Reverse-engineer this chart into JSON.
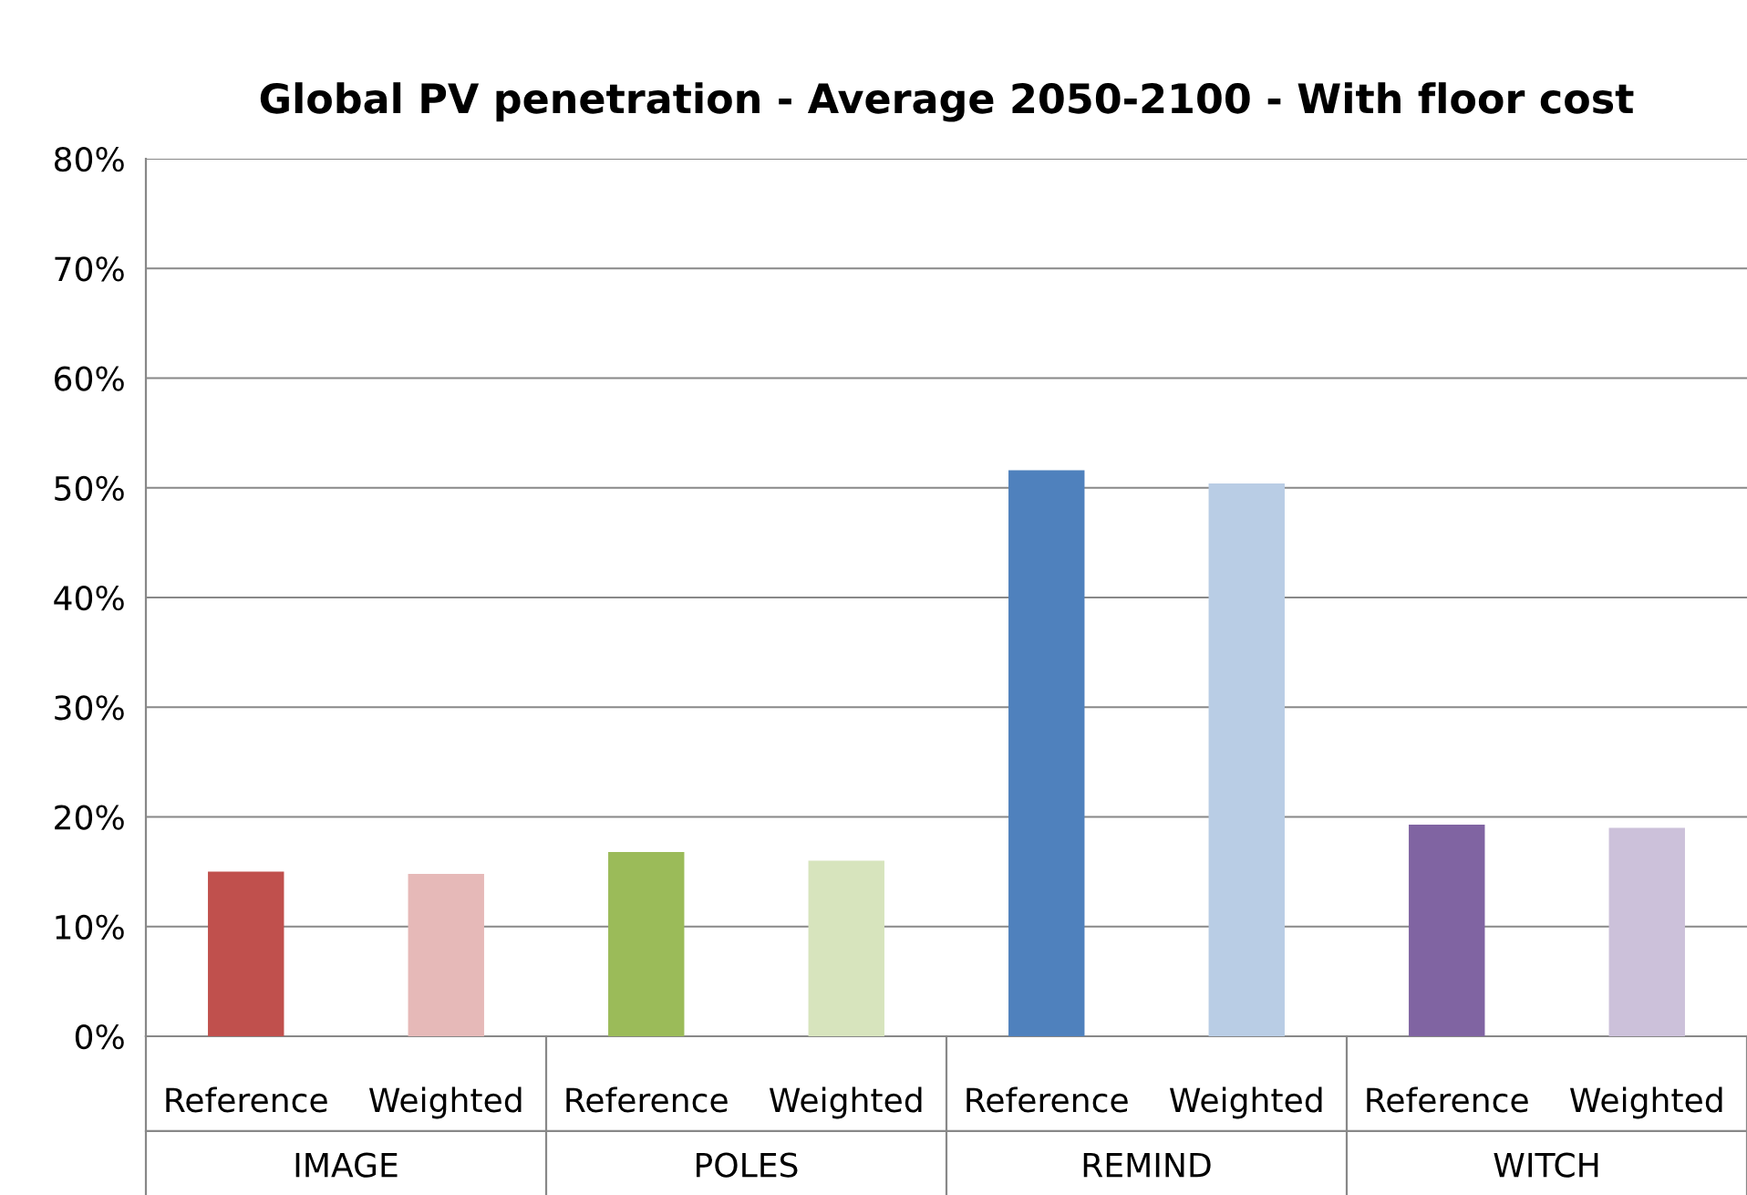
{
  "chart_data": {
    "type": "bar",
    "title": "Global PV penetration - Average 2050-2100 - With floor cost",
    "categories": [
      "Reference",
      "Weighted",
      "Reference",
      "Weighted",
      "Reference",
      "Weighted",
      "Reference",
      "Weighted"
    ],
    "values": [
      15.0,
      14.8,
      16.8,
      16.0,
      51.6,
      50.4,
      19.3,
      19.0
    ],
    "colors": [
      "#c0504d",
      "#e6b9b8",
      "#9bbb59",
      "#d7e4bd",
      "#4f81bd",
      "#b9cde5",
      "#8064a2",
      "#ccc1da"
    ],
    "annotations": [
      "IMAGE",
      "POLES",
      "REMIND",
      "WITCH"
    ],
    "ylim": [
      0,
      80
    ],
    "yticks": [
      {
        "value": 0,
        "label": "0%"
      },
      {
        "value": 10,
        "label": "10%"
      },
      {
        "value": 20,
        "label": "20%"
      },
      {
        "value": 30,
        "label": "30%"
      },
      {
        "value": 40,
        "label": "40%"
      },
      {
        "value": 50,
        "label": "50%"
      },
      {
        "value": 60,
        "label": "60%"
      },
      {
        "value": 70,
        "label": "70%"
      },
      {
        "value": 80,
        "label": "80%"
      }
    ],
    "grid": "y",
    "legend": false
  }
}
